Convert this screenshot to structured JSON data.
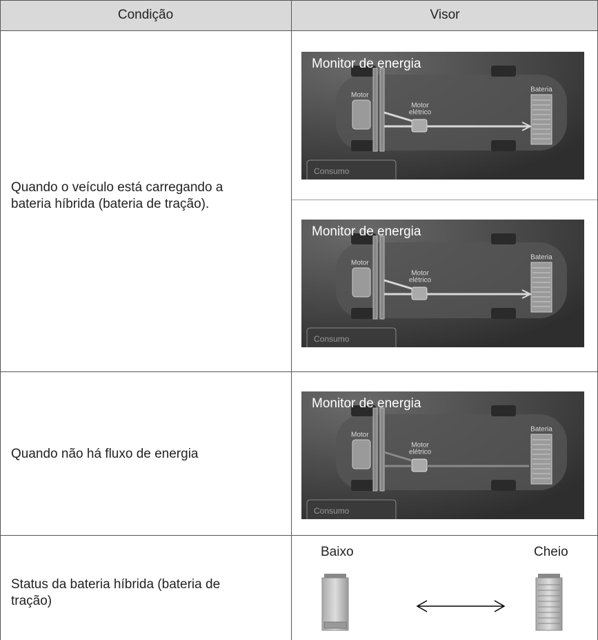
{
  "table": {
    "headers": [
      "Condição",
      "Visor"
    ],
    "rows": [
      {
        "condition": "Quando o veículo está carregando a bateria híbrida (bateria de tração).",
        "screens": [
          {
            "title": "Monitor de energia",
            "motor": "Motor",
            "electric_motor": [
              "Motor",
              "elétrico"
            ],
            "battery": "Bateria",
            "tab": "Consumo"
          },
          {
            "title": "Monitor de energia",
            "motor": "Motor",
            "electric_motor": [
              "Motor",
              "elétrico"
            ],
            "battery": "Bateria",
            "tab": "Consumo"
          }
        ]
      },
      {
        "condition": "Quando não há fluxo de energia",
        "screens": [
          {
            "title": "Monitor de energia",
            "motor": "Motor",
            "electric_motor": [
              "Motor",
              "elétrico"
            ],
            "battery": "Bateria",
            "tab": "Consumo"
          }
        ]
      },
      {
        "condition": "Status da bateria híbrida (bateria de tração)",
        "low": "Baixo",
        "full": "Cheio"
      }
    ]
  }
}
